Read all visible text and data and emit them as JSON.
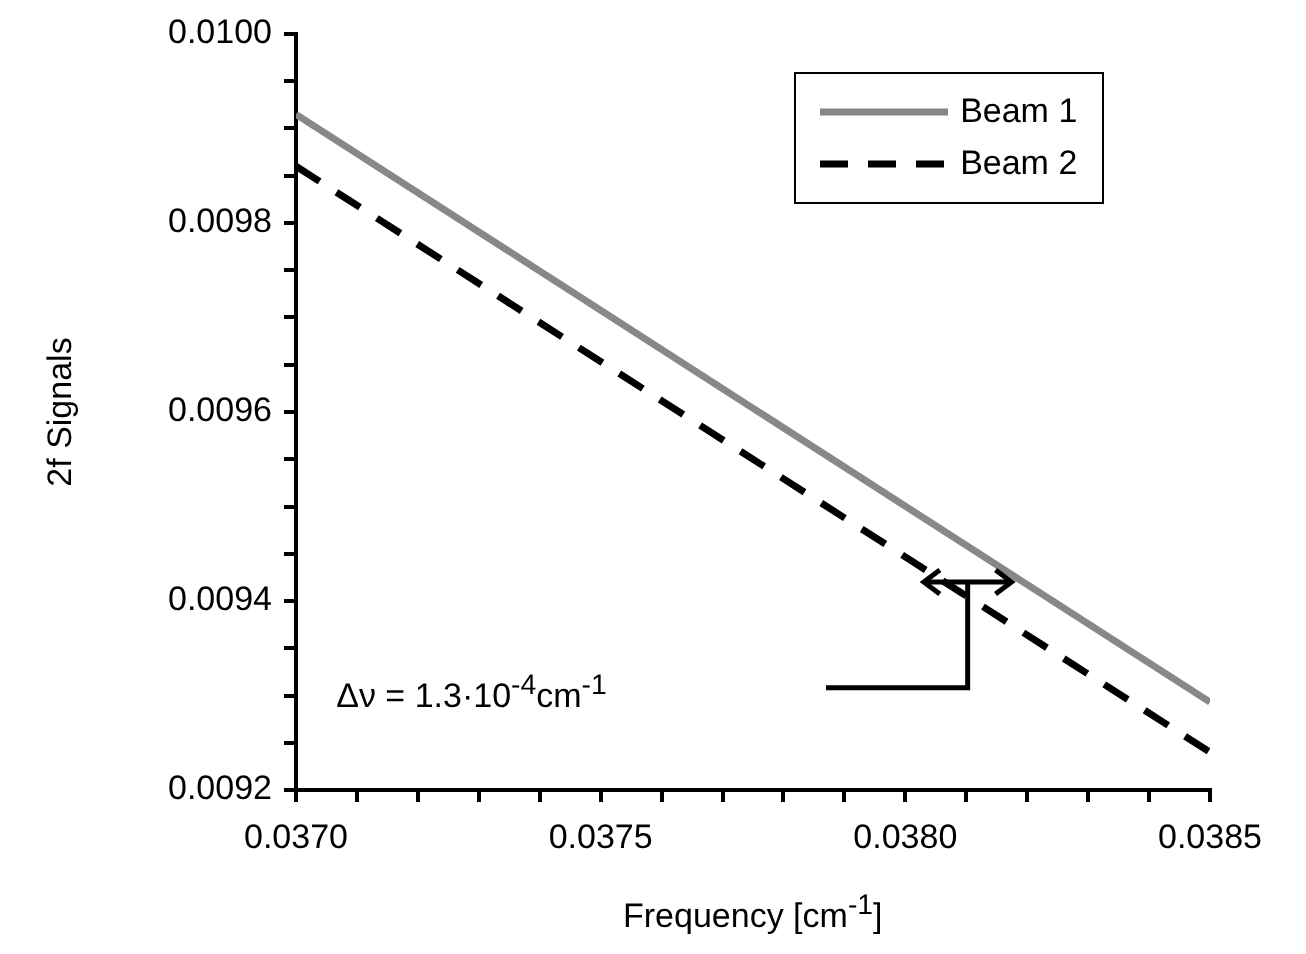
{
  "chart_data": {
    "type": "line",
    "xlabel": "Frequency [cm$^{-1}$]",
    "ylabel": "2f Signals",
    "x": [
      0.037,
      0.0385
    ],
    "series": [
      {
        "name": "Beam 1",
        "color": "#888888",
        "values": [
          0.009915,
          0.009293
        ],
        "line_style": "solid"
      },
      {
        "name": "Beam 2",
        "color": "#000000",
        "values": [
          0.00986,
          0.00924
        ],
        "line_style": "dashed"
      }
    ],
    "xlim": [
      0.037,
      0.0385
    ],
    "xticks": [
      {
        "value": 0.037,
        "label": "0.0370"
      },
      {
        "value": 0.0371,
        "label": null
      },
      {
        "value": 0.0372,
        "label": null
      },
      {
        "value": 0.0373,
        "label": null
      },
      {
        "value": 0.0374,
        "label": null
      },
      {
        "value": 0.0375,
        "label": "0.0375"
      },
      {
        "value": 0.0376,
        "label": null
      },
      {
        "value": 0.0377,
        "label": null
      },
      {
        "value": 0.0378,
        "label": null
      },
      {
        "value": 0.0379,
        "label": null
      },
      {
        "value": 0.038,
        "label": "0.0380"
      },
      {
        "value": 0.0381,
        "label": null
      },
      {
        "value": 0.0382,
        "label": null
      },
      {
        "value": 0.0383,
        "label": null
      },
      {
        "value": 0.0384,
        "label": null
      },
      {
        "value": 0.0385,
        "label": "0.0385"
      }
    ],
    "ylim": [
      0.0092,
      0.01
    ],
    "yticks": [
      {
        "value": 0.0092,
        "label": "0.0092"
      },
      {
        "value": 0.00925,
        "label": null
      },
      {
        "value": 0.0093,
        "label": null
      },
      {
        "value": 0.00935,
        "label": null
      },
      {
        "value": 0.0094,
        "label": "0.0094"
      },
      {
        "value": 0.00945,
        "label": null
      },
      {
        "value": 0.0095,
        "label": null
      },
      {
        "value": 0.00955,
        "label": null
      },
      {
        "value": 0.0096,
        "label": "0.0096"
      },
      {
        "value": 0.00965,
        "label": null
      },
      {
        "value": 0.0097,
        "label": null
      },
      {
        "value": 0.00975,
        "label": null
      },
      {
        "value": 0.0098,
        "label": "0.0098"
      },
      {
        "value": 0.00985,
        "label": null
      },
      {
        "value": 0.0099,
        "label": null
      },
      {
        "value": 0.00995,
        "label": null
      },
      {
        "value": 0.01,
        "label": "0.0100"
      }
    ],
    "grid": false,
    "legend": "top right",
    "marker": "none",
    "annotations": [
      "Δν = 1.3·10$^{-4}$cm$^{-1}$"
    ]
  }
}
